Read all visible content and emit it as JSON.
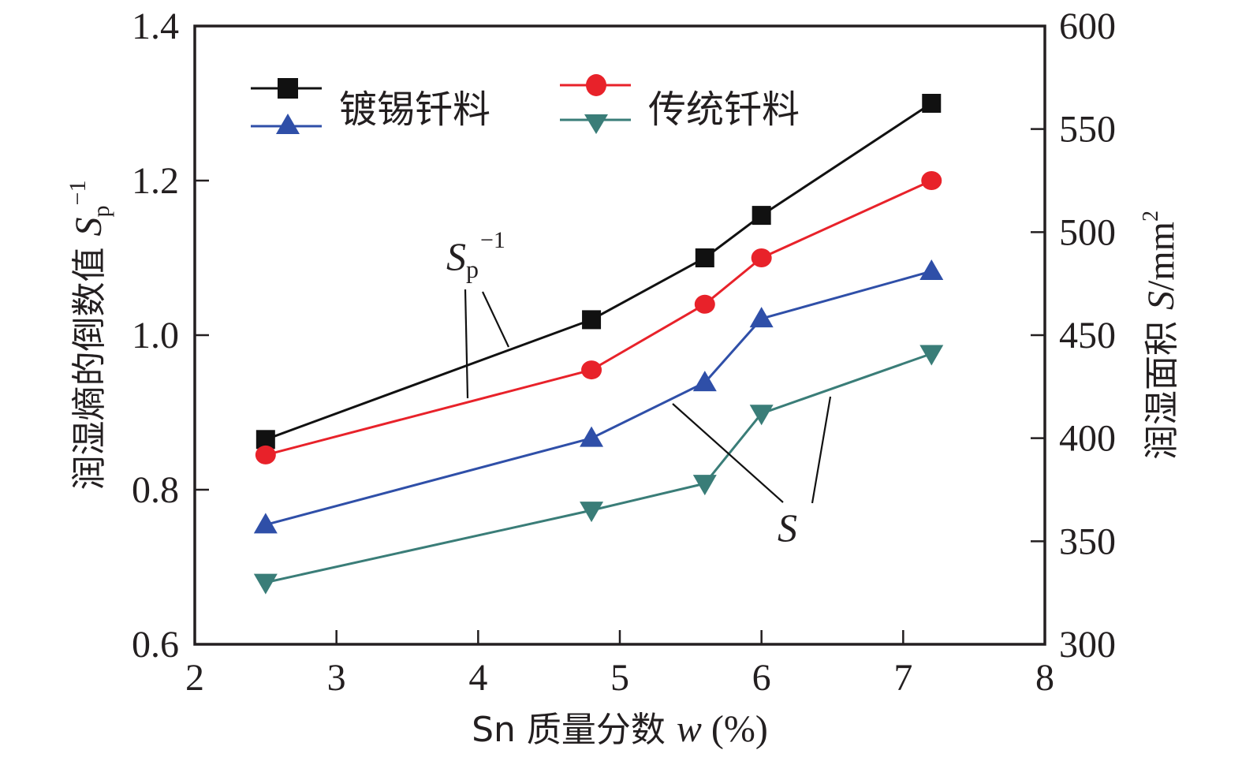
{
  "chart_data": {
    "type": "line",
    "title": "",
    "xlabel": {
      "prefix": "Sn 质量分数 ",
      "var": "w",
      "suffix": " (%)"
    },
    "ylabel_left": {
      "text": "润湿熵的倒数值 ",
      "var": "S",
      "sub": "p",
      "sup": "−1"
    },
    "ylabel_right": {
      "text": "润湿面积 ",
      "var": "S",
      "unit": "/mm",
      "sup": "2"
    },
    "xlim": [
      2,
      8
    ],
    "ylim_left": [
      0.6,
      1.4
    ],
    "ylim_right": [
      300,
      600
    ],
    "xticks": [
      "2",
      "3",
      "4",
      "5",
      "6",
      "7",
      "8"
    ],
    "yticks_left": [
      "0.6",
      "0.8",
      "1.0",
      "1.2",
      "1.4"
    ],
    "yticks_right": [
      "300",
      "350",
      "400",
      "450",
      "500",
      "550",
      "600"
    ],
    "x": [
      2.5,
      4.8,
      5.6,
      6.0,
      7.2
    ],
    "series": [
      {
        "name": "镀锡钎料",
        "quantity": "Sp^-1",
        "axis": "left",
        "marker": "square",
        "color": "#111111",
        "values": [
          0.865,
          1.02,
          1.1,
          1.155,
          1.3
        ]
      },
      {
        "name": "传统钎料",
        "quantity": "Sp^-1",
        "axis": "left",
        "marker": "circle",
        "color": "#e8222a",
        "values": [
          0.845,
          0.955,
          1.04,
          1.1,
          1.2
        ]
      },
      {
        "name": "镀锡钎料",
        "quantity": "S",
        "axis": "right",
        "marker": "triangle-up",
        "color": "#2f4fa8",
        "values": [
          358,
          400,
          427,
          458,
          481
        ]
      },
      {
        "name": "传统钎料",
        "quantity": "S",
        "axis": "right",
        "marker": "triangle-down",
        "color": "#3a7d78",
        "values": [
          330,
          365,
          378,
          412,
          441
        ]
      }
    ],
    "legend": {
      "placement": "top-left",
      "entries": [
        {
          "label": "镀锡钎料",
          "series": [
            0,
            2
          ]
        },
        {
          "label": "传统钎料",
          "series": [
            1,
            3
          ]
        }
      ]
    },
    "annotations": [
      {
        "label_var": "S",
        "label_sub": "p",
        "label_sup": "−1",
        "refers_to": "Sp^-1 curves"
      },
      {
        "label_var": "S",
        "refers_to": "S curves"
      }
    ],
    "grid": false
  }
}
